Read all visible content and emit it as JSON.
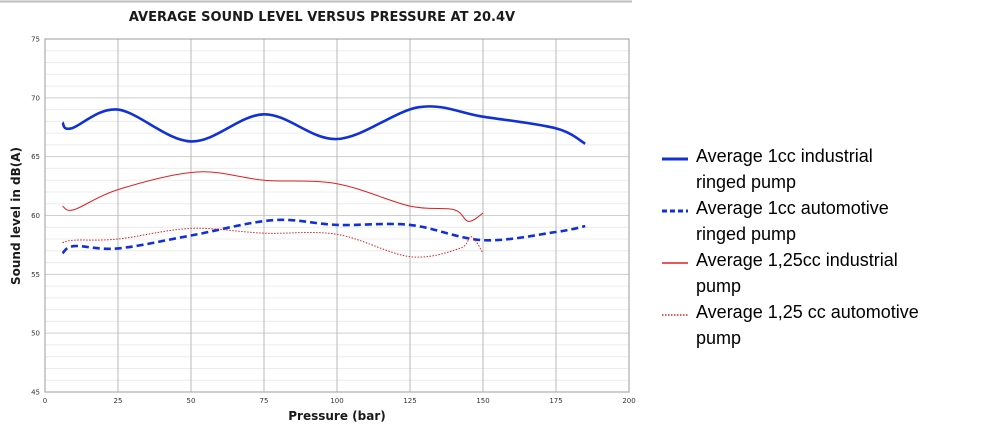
{
  "chart_data": {
    "type": "line",
    "title": "AVERAGE SOUND LEVEL VERSUS PRESSURE AT 20.4V",
    "xlabel": "Pressure (bar)",
    "ylabel": "Sound level in dB(A)",
    "xlim": [
      0,
      200
    ],
    "ylim": [
      45,
      75
    ],
    "x_ticks": [
      "0",
      "25",
      "50",
      "75",
      "100",
      "125",
      "150",
      "175",
      "200"
    ],
    "y_ticks": [
      "45",
      "50",
      "55",
      "60",
      "65",
      "70",
      "75"
    ],
    "grid": true,
    "legend_position": "right",
    "series": [
      {
        "name": "Average 1cc industrial\nringed pump",
        "color": "#1030d8",
        "style": "solid-thick",
        "x": [
          6,
          9,
          25,
          50,
          75,
          100,
          128,
          150,
          175,
          185
        ],
        "y": [
          67.9,
          67.4,
          69.0,
          66.3,
          68.6,
          66.5,
          69.2,
          68.4,
          67.4,
          66.1
        ]
      },
      {
        "name": "Average 1cc automotive\nringed pump",
        "color": "#1030d8",
        "style": "dashed-thick",
        "x": [
          6,
          10,
          25,
          50,
          78,
          100,
          125,
          150,
          175,
          185
        ],
        "y": [
          56.8,
          57.4,
          57.2,
          58.3,
          59.6,
          59.2,
          59.2,
          57.9,
          58.6,
          59.1
        ]
      },
      {
        "name": "Average 1,25cc industrial\npump",
        "color": "#e02020",
        "style": "solid-thin",
        "x": [
          6,
          10,
          25,
          52,
          75,
          100,
          125,
          140,
          145,
          150
        ],
        "y": [
          60.8,
          60.5,
          62.2,
          63.7,
          63.0,
          62.7,
          60.8,
          60.5,
          59.5,
          60.2
        ]
      },
      {
        "name": "Average 1,25 cc automotive\npump",
        "color": "#e02020",
        "style": "dotted-thin",
        "x": [
          6,
          10,
          25,
          50,
          75,
          100,
          125,
          142,
          146,
          150
        ],
        "y": [
          57.7,
          57.9,
          58.0,
          58.9,
          58.5,
          58.4,
          56.5,
          57.2,
          58.2,
          56.8
        ]
      }
    ]
  }
}
